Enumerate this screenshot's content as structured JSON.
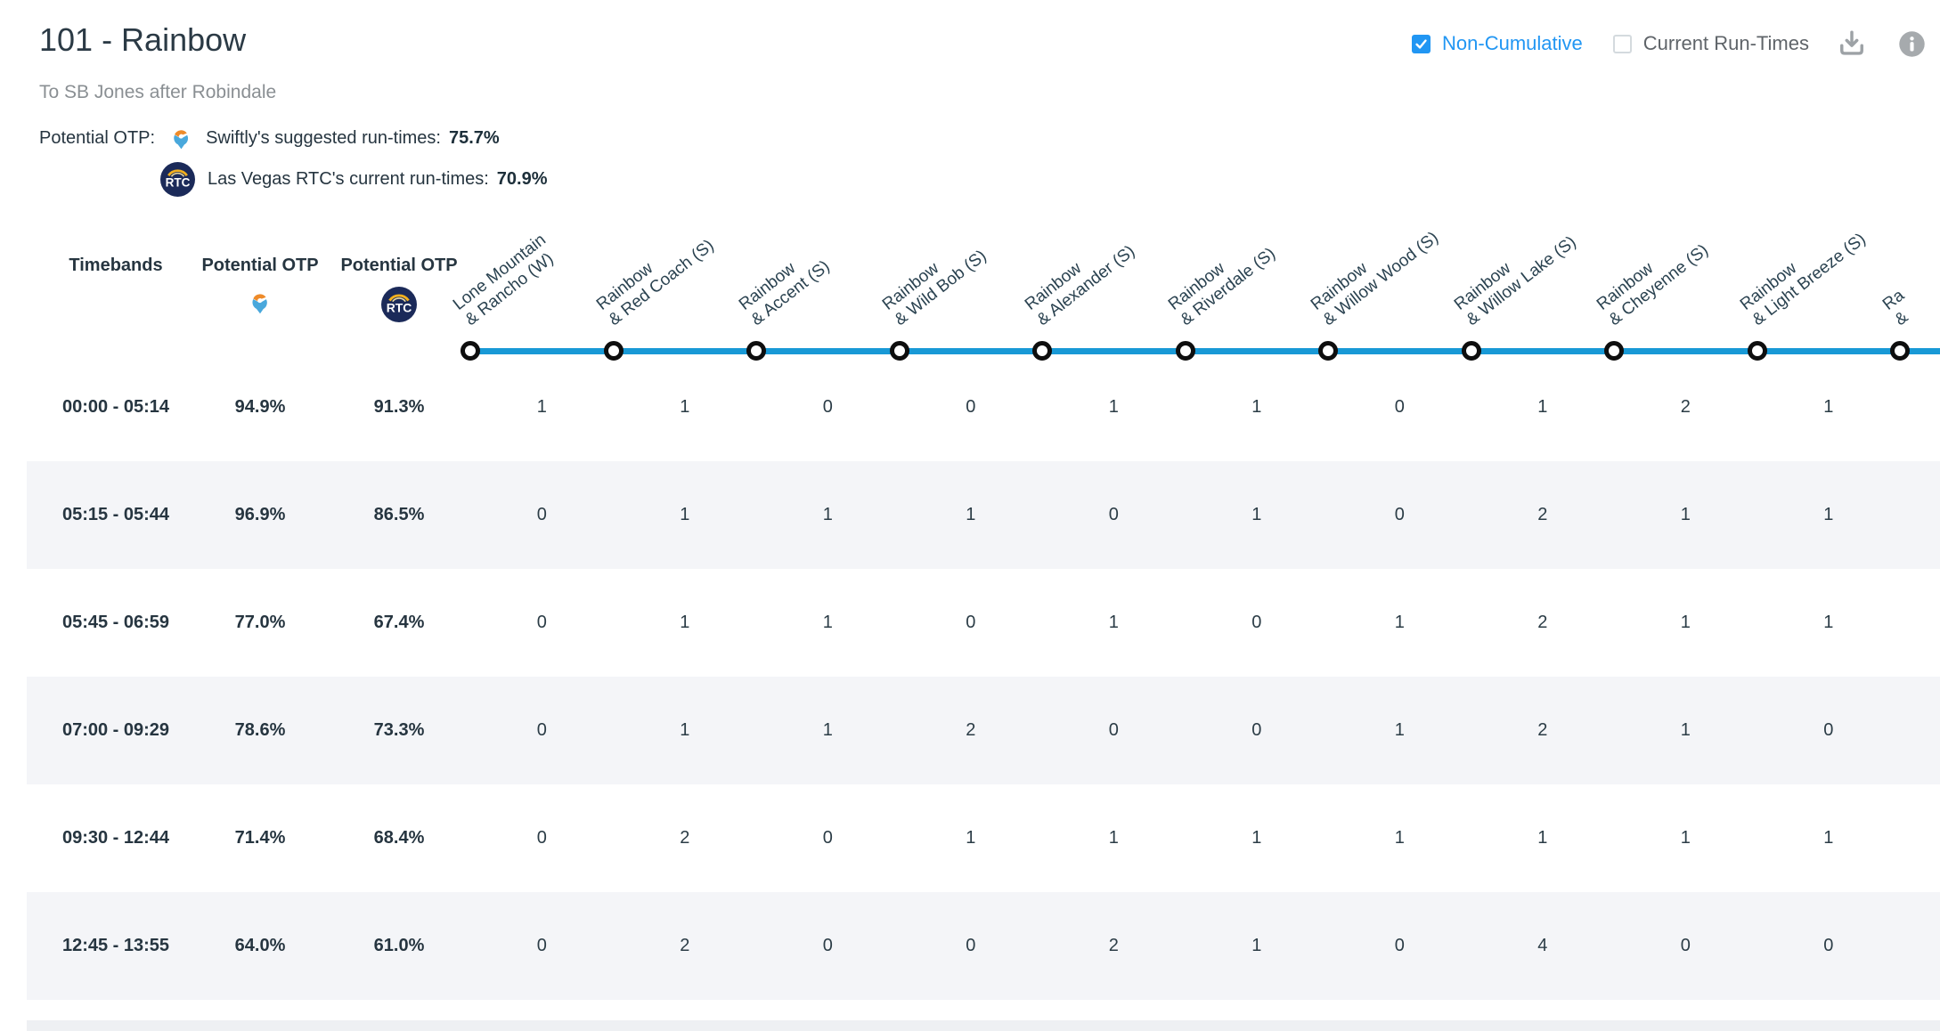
{
  "header": {
    "title": "101 - Rainbow",
    "subtitle": "To SB Jones after Robindale"
  },
  "controls": {
    "non_cumulative": {
      "label": "Non-Cumulative",
      "checked": true
    },
    "current_run_times": {
      "label": "Current Run-Times",
      "checked": false
    },
    "icons": {
      "download": "download-icon",
      "info": "info-icon"
    }
  },
  "otp_summary": {
    "label": "Potential OTP:",
    "swiftly": {
      "source": "Swiftly's suggested run-times:",
      "value": "75.7%"
    },
    "rtc": {
      "source": "Las Vegas RTC's current run-times:",
      "value": "70.9%"
    }
  },
  "logos": {
    "rtc_text": "RTC",
    "swiftly_icon": "swiftly-pin-icon",
    "rtc_icon": "rtc-circle-icon"
  },
  "table": {
    "columns": {
      "timebands": "Timebands",
      "otp_swiftly": "Potential OTP",
      "otp_rtc": "Potential OTP"
    },
    "stops": [
      {
        "line1": "Lone Mountain",
        "line2": "& Rancho (W)"
      },
      {
        "line1": "Rainbow",
        "line2": "& Red Coach (S)"
      },
      {
        "line1": "Rainbow",
        "line2": "& Accent (S)"
      },
      {
        "line1": "Rainbow",
        "line2": "& Wild Bob (S)"
      },
      {
        "line1": "Rainbow",
        "line2": "& Alexander (S)"
      },
      {
        "line1": "Rainbow",
        "line2": "& Riverdale (S)"
      },
      {
        "line1": "Rainbow",
        "line2": "& Willow Wood (S)"
      },
      {
        "line1": "Rainbow",
        "line2": "& Willow Lake (S)"
      },
      {
        "line1": "Rainbow",
        "line2": "& Cheyenne (S)"
      },
      {
        "line1": "Rainbow",
        "line2": "& Light Breeze (S)"
      },
      {
        "line1": "Ra",
        "line2": "&"
      }
    ],
    "rows": [
      {
        "timeband": "00:00 - 05:14",
        "otp_swiftly": "94.9%",
        "otp_rtc": "91.3%",
        "values": [
          1,
          1,
          0,
          0,
          1,
          1,
          0,
          1,
          2,
          1
        ]
      },
      {
        "timeband": "05:15 - 05:44",
        "otp_swiftly": "96.9%",
        "otp_rtc": "86.5%",
        "values": [
          0,
          1,
          1,
          1,
          0,
          1,
          0,
          2,
          1,
          1
        ]
      },
      {
        "timeband": "05:45 - 06:59",
        "otp_swiftly": "77.0%",
        "otp_rtc": "67.4%",
        "values": [
          0,
          1,
          1,
          0,
          1,
          0,
          1,
          2,
          1,
          1
        ]
      },
      {
        "timeband": "07:00 - 09:29",
        "otp_swiftly": "78.6%",
        "otp_rtc": "73.3%",
        "values": [
          0,
          1,
          1,
          2,
          0,
          0,
          1,
          2,
          1,
          0
        ]
      },
      {
        "timeband": "09:30 - 12:44",
        "otp_swiftly": "71.4%",
        "otp_rtc": "68.4%",
        "values": [
          0,
          2,
          0,
          1,
          1,
          1,
          1,
          1,
          1,
          1
        ]
      },
      {
        "timeband": "12:45 - 13:55",
        "otp_swiftly": "64.0%",
        "otp_rtc": "61.0%",
        "values": [
          0,
          2,
          0,
          0,
          2,
          1,
          0,
          4,
          0,
          0
        ]
      }
    ]
  },
  "colors": {
    "accent_blue": "#2196f3",
    "route_line_blue": "#1899d6",
    "row_stripe": "#f4f5f8",
    "text_dark": "#263540",
    "subtitle_gray": "#8a8f93",
    "icon_gray": "#9da2a6",
    "rtc_navy": "#1b2a59",
    "rtc_gold": "#f2b01e",
    "swiftly_orange": "#ee8b2a",
    "swiftly_blue": "#49a8dc"
  }
}
